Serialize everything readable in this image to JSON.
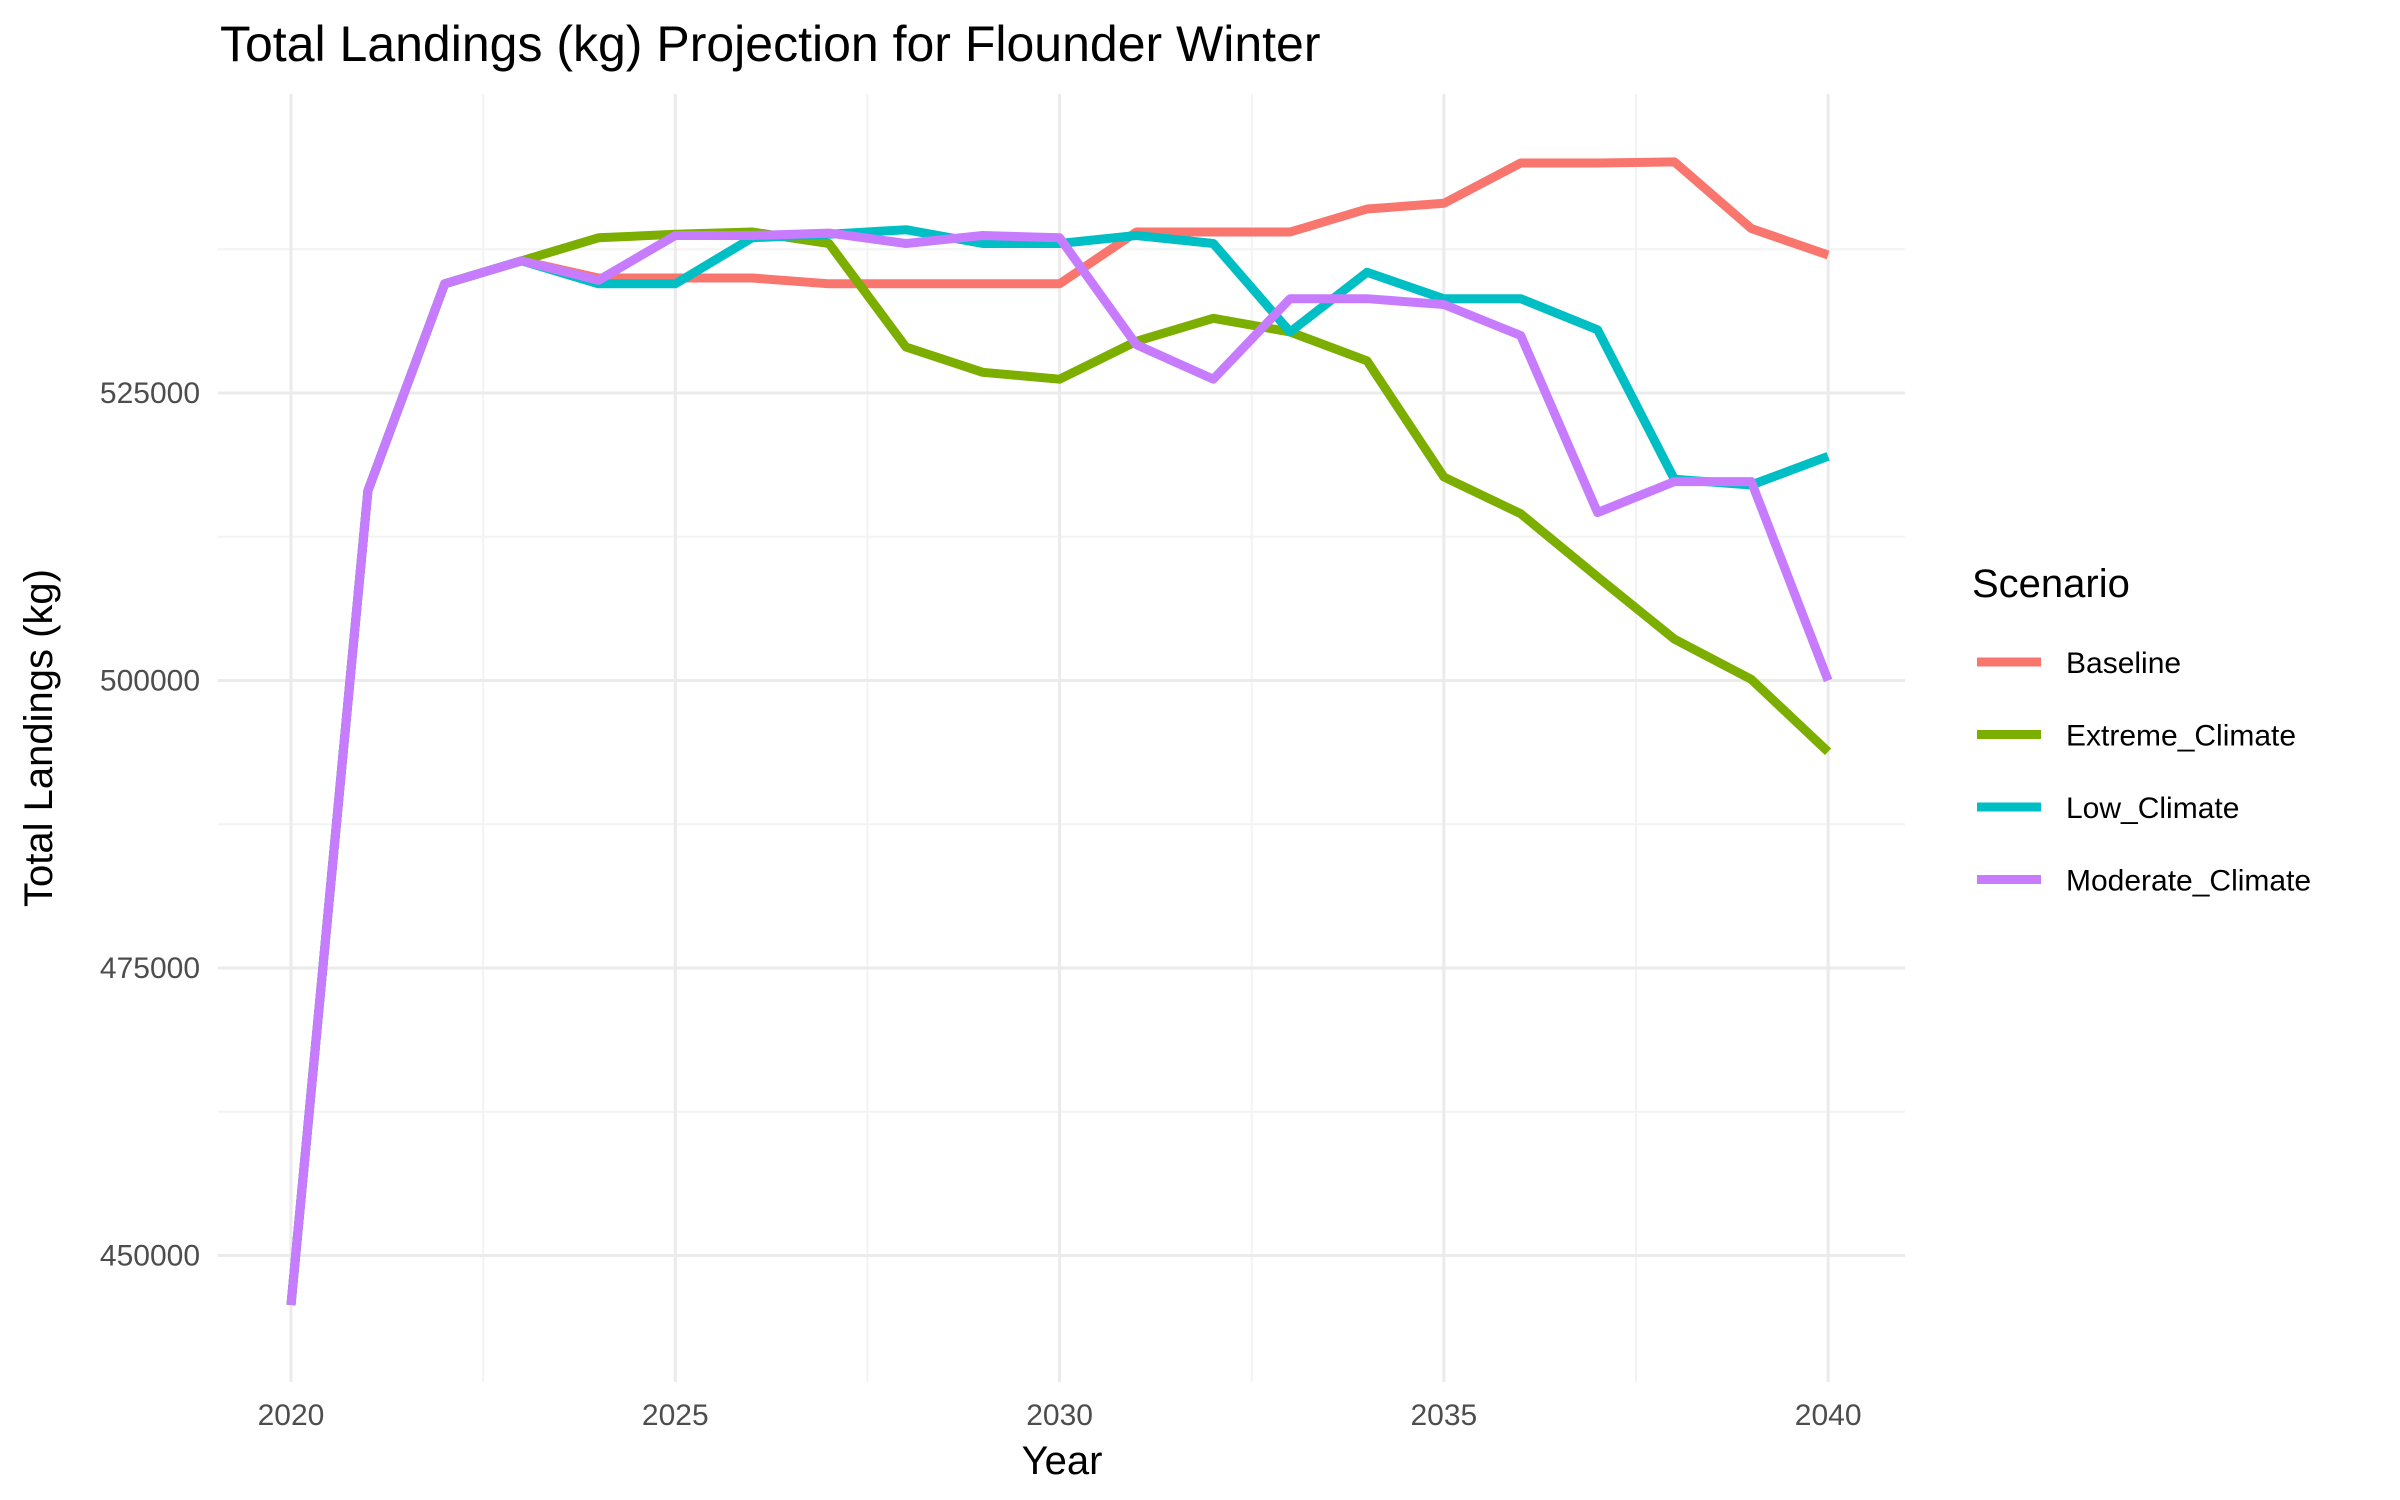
{
  "chart_data": {
    "type": "line",
    "title": "Total Landings (kg) Projection for Flounder Winter",
    "xlabel": "Year",
    "ylabel": "Total Landings (kg)",
    "x": [
      2020,
      2021,
      2022,
      2023,
      2024,
      2025,
      2026,
      2027,
      2028,
      2029,
      2030,
      2031,
      2032,
      2033,
      2034,
      2035,
      2036,
      2037,
      2038,
      2039,
      2040
    ],
    "xlim": [
      2019.05,
      2041.0
    ],
    "ylim": [
      439000,
      551000
    ],
    "x_ticks": [
      2020,
      2025,
      2030,
      2035,
      2040
    ],
    "x_tick_labels": [
      "2020",
      "2025",
      "2030",
      "2035",
      "2040"
    ],
    "y_ticks": [
      450000,
      475000,
      500000,
      525000
    ],
    "y_tick_labels": [
      "450000",
      "475000",
      "500000",
      "525000"
    ],
    "grid": true,
    "legend": {
      "title": "Scenario",
      "position": "right"
    },
    "series": [
      {
        "name": "Baseline",
        "color": "#F8766D",
        "values": [
          445700,
          516500,
          534500,
          536500,
          535000,
          535000,
          535000,
          534500,
          534500,
          534500,
          534500,
          539000,
          539000,
          539000,
          541000,
          541500,
          545000,
          545000,
          545100,
          539300,
          537000
        ]
      },
      {
        "name": "Extreme_Climate",
        "color": "#7CAE00",
        "values": [
          445700,
          516500,
          534500,
          536500,
          538500,
          538800,
          539000,
          538000,
          529000,
          526800,
          526200,
          529500,
          531500,
          530300,
          527800,
          517700,
          514500,
          509000,
          503600,
          500100,
          493800
        ]
      },
      {
        "name": "Low_Climate",
        "color": "#00BFC4",
        "values": [
          445700,
          516500,
          534500,
          536500,
          534500,
          534500,
          538500,
          538800,
          539200,
          538000,
          538000,
          538700,
          538000,
          530300,
          535500,
          533200,
          533200,
          530500,
          517500,
          517000,
          519500
        ]
      },
      {
        "name": "Moderate_Climate",
        "color": "#C77CFF",
        "values": [
          445700,
          516500,
          534500,
          536500,
          534800,
          538700,
          538700,
          538900,
          538000,
          538700,
          538500,
          529200,
          526200,
          533200,
          533200,
          532700,
          530000,
          514600,
          517300,
          517300,
          500000
        ]
      }
    ]
  }
}
